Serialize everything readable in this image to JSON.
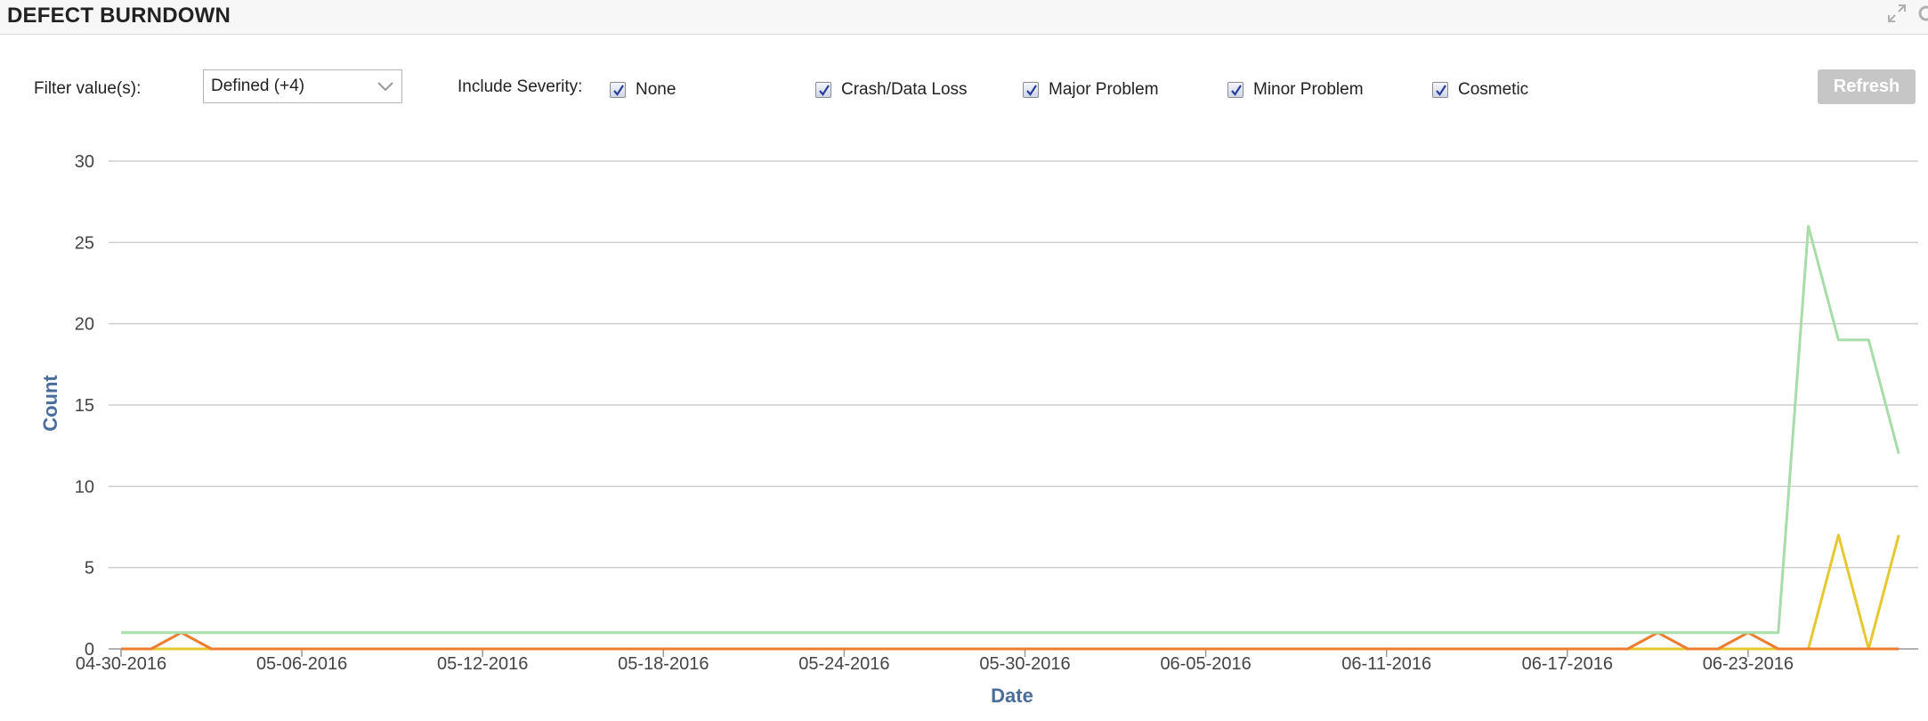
{
  "header": {
    "title": "DEFECT BURNDOWN"
  },
  "filter": {
    "label": "Filter value(s):",
    "selected": "Defined (+4)"
  },
  "severity": {
    "label": "Include Severity:",
    "options": [
      {
        "label": "None",
        "checked": true
      },
      {
        "label": "Crash/Data Loss",
        "checked": true
      },
      {
        "label": "Major Problem",
        "checked": true
      },
      {
        "label": "Minor Problem",
        "checked": true
      },
      {
        "label": "Cosmetic",
        "checked": true
      }
    ]
  },
  "refresh_label": "Refresh",
  "chart_data": {
    "type": "line",
    "xlabel": "Date",
    "ylabel": "Count",
    "ylim": [
      0,
      30
    ],
    "yticks": [
      0,
      5,
      10,
      15,
      20,
      25,
      30
    ],
    "xlim": [
      "2016-04-30",
      "2016-06-29"
    ],
    "xticks": [
      "04-30-2016",
      "05-06-2016",
      "05-12-2016",
      "05-18-2016",
      "05-24-2016",
      "05-30-2016",
      "06-05-2016",
      "06-11-2016",
      "06-17-2016",
      "06-23-2016"
    ],
    "grid": true,
    "legend": "none",
    "series": [
      {
        "color": "#a8dca8",
        "points": [
          [
            "2016-04-30",
            1
          ],
          [
            "2016-06-24",
            1
          ],
          [
            "2016-06-25",
            26
          ],
          [
            "2016-06-26",
            19
          ],
          [
            "2016-06-27",
            19
          ],
          [
            "2016-06-28",
            12
          ]
        ]
      },
      {
        "color": "#ed7d31",
        "points": [
          [
            "2016-04-30",
            0
          ],
          [
            "2016-05-01",
            0
          ],
          [
            "2016-05-02",
            1
          ],
          [
            "2016-05-03",
            0
          ],
          [
            "2016-06-19",
            0
          ],
          [
            "2016-06-20",
            1
          ],
          [
            "2016-06-21",
            0
          ],
          [
            "2016-06-22",
            0
          ],
          [
            "2016-06-23",
            1
          ],
          [
            "2016-06-24",
            0
          ],
          [
            "2016-06-28",
            0
          ]
        ]
      },
      {
        "color": "#e8c830",
        "points": [
          [
            "2016-04-30",
            0
          ],
          [
            "2016-06-25",
            0
          ],
          [
            "2016-06-26",
            7
          ],
          [
            "2016-06-27",
            0
          ],
          [
            "2016-06-28",
            7
          ]
        ]
      },
      {
        "color": "#8b4bb0",
        "points": [
          [
            "2016-04-30",
            0
          ],
          [
            "2016-06-28",
            0
          ]
        ]
      }
    ]
  }
}
